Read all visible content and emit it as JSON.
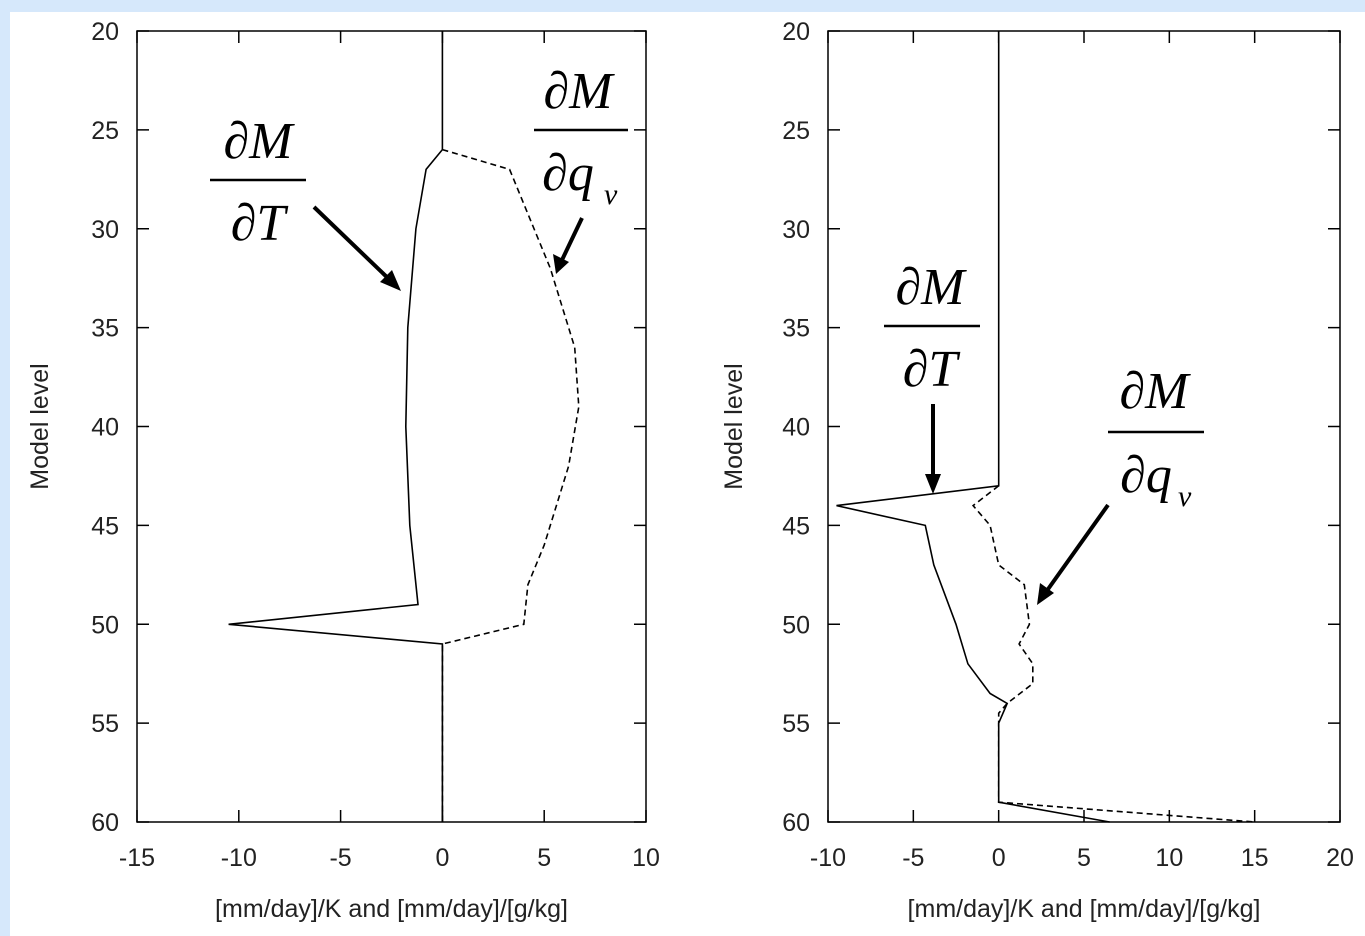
{
  "colors": {
    "frame": "#d6e8fb",
    "line": "#000000",
    "text": "#222222"
  },
  "chart_data": [
    {
      "type": "line",
      "title": "",
      "xlabel": "[mm/day]/K and [mm/day]/[g/kg]",
      "ylabel": "Model level",
      "xlim": [
        -15,
        10
      ],
      "ylim": [
        20,
        60
      ],
      "y_inverted": true,
      "xticks": [
        "-15",
        "-10",
        "-5",
        "0",
        "5",
        "10"
      ],
      "yticks": [
        "20",
        "25",
        "30",
        "35",
        "40",
        "45",
        "50",
        "55",
        "60"
      ],
      "annotations": [
        {
          "label": "∂M / ∂T",
          "numerator": "∂M",
          "denominator": "∂T",
          "denominator_sub": ""
        },
        {
          "label": "∂M / ∂q_v",
          "numerator": "∂M",
          "denominator": "∂q",
          "denominator_sub": "v"
        }
      ],
      "series": [
        {
          "style": "solid",
          "points": [
            [
              0,
              20
            ],
            [
              0,
              26
            ],
            [
              -0.8,
              27
            ],
            [
              -1.3,
              30
            ],
            [
              -1.7,
              35
            ],
            [
              -1.8,
              40
            ],
            [
              -1.6,
              45
            ],
            [
              -1.2,
              49
            ],
            [
              -10.5,
              50
            ],
            [
              0,
              51
            ],
            [
              0,
              60
            ]
          ]
        },
        {
          "style": "dashed",
          "points": [
            [
              0,
              26
            ],
            [
              3.3,
              27
            ],
            [
              5.3,
              32
            ],
            [
              6.5,
              36
            ],
            [
              6.7,
              39
            ],
            [
              6.2,
              42
            ],
            [
              5,
              46
            ],
            [
              4.2,
              48
            ],
            [
              4,
              50
            ],
            [
              0,
              51
            ],
            [
              0,
              60
            ]
          ]
        }
      ]
    },
    {
      "type": "line",
      "title": "",
      "xlabel": "[mm/day]/K and [mm/day]/[g/kg]",
      "ylabel": "Model level",
      "xlim": [
        -10,
        20
      ],
      "ylim": [
        20,
        60
      ],
      "y_inverted": true,
      "xticks": [
        "-10",
        "-5",
        "0",
        "5",
        "10",
        "15",
        "20"
      ],
      "yticks": [
        "20",
        "25",
        "30",
        "35",
        "40",
        "45",
        "50",
        "55",
        "60"
      ],
      "annotations": [
        {
          "label": "∂M / ∂T",
          "numerator": "∂M",
          "denominator": "∂T",
          "denominator_sub": ""
        },
        {
          "label": "∂M / ∂q_v",
          "numerator": "∂M",
          "denominator": "∂q",
          "denominator_sub": "v"
        }
      ],
      "series": [
        {
          "style": "solid",
          "points": [
            [
              0,
              20
            ],
            [
              0,
              43
            ],
            [
              -9.5,
              44
            ],
            [
              -4.3,
              45
            ],
            [
              -3.8,
              47
            ],
            [
              -2.5,
              50
            ],
            [
              -1.8,
              52
            ],
            [
              -0.5,
              53.5
            ],
            [
              0.5,
              54
            ],
            [
              0,
              55
            ],
            [
              0,
              59
            ],
            [
              6.5,
              60
            ]
          ]
        },
        {
          "style": "dashed",
          "points": [
            [
              0,
              43
            ],
            [
              -1.5,
              44
            ],
            [
              -0.5,
              45
            ],
            [
              0,
              47
            ],
            [
              1.5,
              48
            ],
            [
              1.8,
              50
            ],
            [
              1.2,
              51
            ],
            [
              2,
              52
            ],
            [
              2,
              53
            ],
            [
              0.5,
              54
            ],
            [
              0,
              54.5
            ],
            [
              0,
              59
            ],
            [
              15,
              60
            ]
          ]
        }
      ]
    }
  ]
}
